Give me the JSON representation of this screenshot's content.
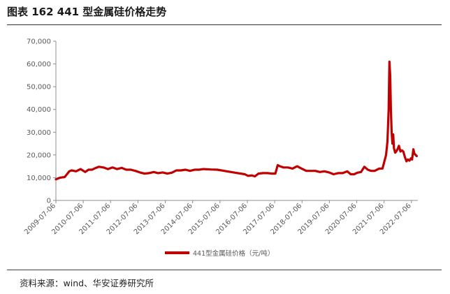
{
  "figure": {
    "title": "图表 162 441 型金属硅价格走势",
    "source": "资料来源：wind、华安证券研究所"
  },
  "chart_data": {
    "type": "line",
    "title": "",
    "xlabel": "",
    "ylabel": "",
    "ylim": [
      0,
      70000
    ],
    "yticks": [
      0,
      10000,
      20000,
      30000,
      40000,
      50000,
      60000,
      70000
    ],
    "ytick_labels": [
      "0",
      "10,000",
      "20,000",
      "30,000",
      "40,000",
      "50,000",
      "60,000",
      "70,000"
    ],
    "xlim": [
      "2009-07-06",
      "2022-09-30"
    ],
    "xticks": [
      "2009-07-06",
      "2010-07-06",
      "2011-07-06",
      "2012-07-06",
      "2013-07-06",
      "2014-07-06",
      "2015-07-06",
      "2016-07-06",
      "2017-07-06",
      "2018-07-06",
      "2019-07-06",
      "2020-07-06",
      "2021-07-06",
      "2022-07-06"
    ],
    "grid": false,
    "legend_position": "bottom-center",
    "series": [
      {
        "name": "441型金属硅价格（元/吨）",
        "color": "#C00000",
        "x": [
          "2009-07-06",
          "2009-09-01",
          "2009-11-01",
          "2010-01-01",
          "2010-02-01",
          "2010-04-01",
          "2010-06-01",
          "2010-08-01",
          "2010-09-15",
          "2010-11-01",
          "2010-12-15",
          "2011-02-01",
          "2011-04-01",
          "2011-06-01",
          "2011-08-01",
          "2011-10-01",
          "2011-12-01",
          "2012-02-01",
          "2012-04-01",
          "2012-06-01",
          "2012-08-01",
          "2012-10-01",
          "2012-12-01",
          "2013-02-01",
          "2013-04-01",
          "2013-06-01",
          "2013-08-01",
          "2013-10-01",
          "2013-12-01",
          "2014-02-01",
          "2014-04-01",
          "2014-06-01",
          "2014-08-01",
          "2014-10-01",
          "2014-12-01",
          "2015-03-01",
          "2015-06-01",
          "2015-09-01",
          "2015-12-01",
          "2016-03-01",
          "2016-06-01",
          "2016-07-15",
          "2016-09-01",
          "2016-10-15",
          "2016-12-01",
          "2017-02-01",
          "2017-04-01",
          "2017-06-01",
          "2017-07-15",
          "2017-08-15",
          "2017-09-15",
          "2017-11-01",
          "2018-01-01",
          "2018-03-01",
          "2018-05-01",
          "2018-07-01",
          "2018-09-01",
          "2018-11-01",
          "2019-01-01",
          "2019-03-01",
          "2019-05-01",
          "2019-07-01",
          "2019-09-01",
          "2019-11-01",
          "2020-01-01",
          "2020-03-01",
          "2020-04-15",
          "2020-06-01",
          "2020-07-15",
          "2020-09-01",
          "2020-10-15",
          "2020-12-01",
          "2021-01-15",
          "2021-03-01",
          "2021-05-01",
          "2021-06-15",
          "2021-08-01",
          "2021-08-20",
          "2021-09-05",
          "2021-09-15",
          "2021-09-25",
          "2021-10-05",
          "2021-10-15",
          "2021-10-25",
          "2021-11-05",
          "2021-11-15",
          "2021-12-01",
          "2021-12-15",
          "2022-01-01",
          "2022-01-20",
          "2022-02-10",
          "2022-03-01",
          "2022-03-20",
          "2022-04-10",
          "2022-05-01",
          "2022-05-20",
          "2022-06-10",
          "2022-07-01",
          "2022-07-15",
          "2022-08-01",
          "2022-08-15",
          "2022-09-01",
          "2022-09-15"
        ],
        "values": [
          9300,
          10000,
          10300,
          12800,
          13200,
          12800,
          13800,
          12500,
          13500,
          13500,
          14200,
          14800,
          14500,
          13800,
          14500,
          13800,
          14300,
          13500,
          13500,
          13000,
          12300,
          11800,
          12000,
          12500,
          12000,
          12300,
          11800,
          12200,
          13200,
          13200,
          13500,
          13000,
          13500,
          13500,
          13800,
          13600,
          13500,
          13000,
          12500,
          12000,
          11500,
          10800,
          11000,
          10600,
          11800,
          12000,
          12000,
          11800,
          11800,
          15500,
          15000,
          14500,
          14500,
          14000,
          15000,
          14000,
          13000,
          13000,
          13000,
          12500,
          12800,
          12300,
          11500,
          12000,
          12000,
          12800,
          11500,
          11500,
          12200,
          12500,
          14800,
          13500,
          13000,
          13000,
          14000,
          14000,
          20000,
          26000,
          40000,
          61000,
          55000,
          40000,
          30000,
          25000,
          29000,
          23000,
          21000,
          21500,
          22500,
          24000,
          21500,
          22000,
          21500,
          19000,
          17200,
          18000,
          17500,
          18500,
          18000,
          22500,
          20500,
          20000,
          19500
        ]
      }
    ]
  }
}
